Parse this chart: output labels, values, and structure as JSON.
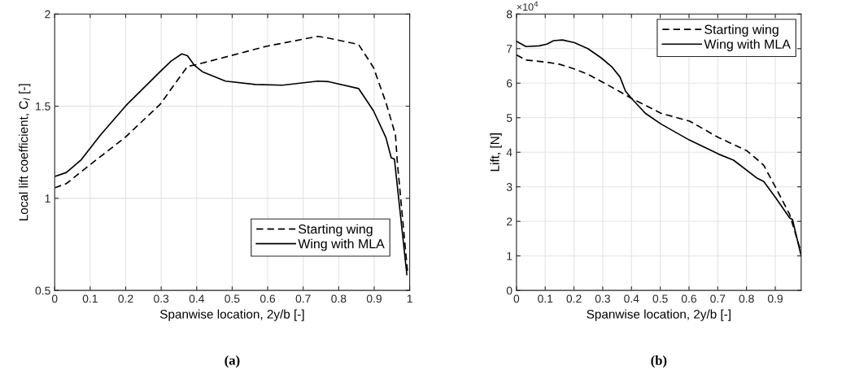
{
  "chart_data": [
    {
      "type": "line",
      "xlabel": "Spanwise location, 2y/b [-]",
      "ylabel": "Local lift coefficient, C$_{l}$ [-]",
      "annotations": [
        "(a)"
      ],
      "xlim": [
        0,
        1
      ],
      "ylim": [
        0.5,
        2
      ],
      "xticks": [
        0,
        0.1,
        0.2,
        0.3,
        0.4,
        0.5,
        0.6,
        0.7,
        0.8,
        0.9,
        1
      ],
      "yticks": [
        0.5,
        1,
        1.5,
        2
      ],
      "grid": true,
      "legend": "bottom right",
      "marker": "none",
      "series": [
        {
          "name": "Starting wing",
          "color": "#000000",
          "line_style": "dashed",
          "x": [
            0,
            0.033,
            0.098,
            0.198,
            0.297,
            0.374,
            0.4,
            0.596,
            0.741,
            0.77,
            0.856,
            0.898,
            0.933,
            0.96,
            0.965,
            0.994
          ],
          "values": [
            1.057,
            1.08,
            1.18,
            1.33,
            1.51,
            1.716,
            1.726,
            1.825,
            1.879,
            1.87,
            1.835,
            1.71,
            1.52,
            1.344,
            1.2,
            0.6
          ]
        },
        {
          "name": "Wing with MLA",
          "color": "#000000",
          "line_style": "solid",
          "x": [
            0,
            0.033,
            0.075,
            0.129,
            0.201,
            0.297,
            0.328,
            0.358,
            0.374,
            0.393,
            0.416,
            0.481,
            0.565,
            0.642,
            0.741,
            0.772,
            0.856,
            0.898,
            0.933,
            0.948,
            0.957,
            0.992
          ],
          "values": [
            1.118,
            1.14,
            1.21,
            1.344,
            1.504,
            1.687,
            1.745,
            1.784,
            1.774,
            1.723,
            1.687,
            1.636,
            1.618,
            1.614,
            1.636,
            1.633,
            1.596,
            1.475,
            1.33,
            1.22,
            1.213,
            0.586
          ]
        }
      ]
    },
    {
      "type": "line",
      "xlabel": "Spanwise location, 2y/b [-]",
      "ylabel": "Lift, [N]",
      "annotations": [
        "×10$^{4}$",
        "(b)"
      ],
      "xlim": [
        0,
        0.99
      ],
      "ylim": [
        0,
        8
      ],
      "xticks": [
        0,
        0.1,
        0.2,
        0.3,
        0.4,
        0.5,
        0.6,
        0.7,
        0.8,
        0.9
      ],
      "yticks": [
        0,
        1,
        2,
        3,
        4,
        5,
        6,
        7,
        8
      ],
      "grid": true,
      "legend": "top right",
      "marker": "none",
      "series": [
        {
          "name": "Starting wing",
          "color": "#000000",
          "line_style": "dashed",
          "x": [
            0,
            0.033,
            0.102,
            0.148,
            0.195,
            0.248,
            0.302,
            0.356,
            0.4,
            0.502,
            0.602,
            0.702,
            0.802,
            0.84,
            0.86,
            0.9,
            0.95,
            0.99
          ],
          "values": [
            6.82,
            6.67,
            6.61,
            6.55,
            6.43,
            6.26,
            6.02,
            5.77,
            5.56,
            5.13,
            4.9,
            4.43,
            4.04,
            3.77,
            3.62,
            3.0,
            2.2,
            1.1
          ]
        },
        {
          "name": "Wing with MLA",
          "color": "#000000",
          "line_style": "solid",
          "x": [
            0,
            0.033,
            0.079,
            0.106,
            0.129,
            0.16,
            0.202,
            0.248,
            0.295,
            0.333,
            0.36,
            0.379,
            0.4,
            0.448,
            0.502,
            0.602,
            0.702,
            0.755,
            0.835,
            0.86,
            0.9,
            0.95,
            0.96,
            0.99
          ],
          "values": [
            7.21,
            7.06,
            7.08,
            7.13,
            7.23,
            7.25,
            7.17,
            7.0,
            6.73,
            6.46,
            6.18,
            5.77,
            5.56,
            5.13,
            4.82,
            4.35,
            3.95,
            3.77,
            3.26,
            3.15,
            2.7,
            2.1,
            2.05,
            1.0
          ]
        }
      ]
    }
  ]
}
